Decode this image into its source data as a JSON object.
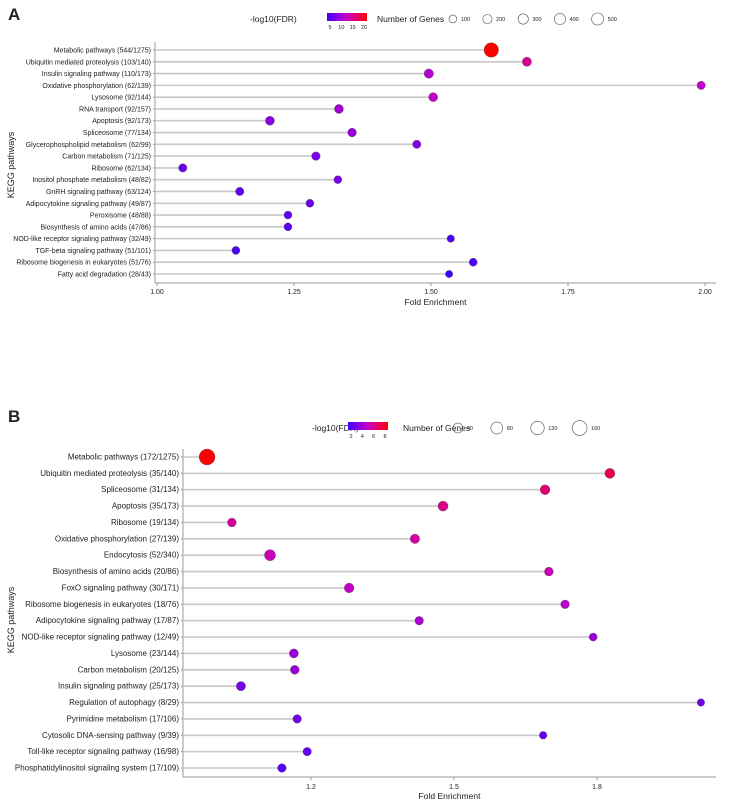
{
  "chart_data": [
    {
      "panel": "A",
      "type": "scatter",
      "subtype": "lollipop",
      "xlabel": "Fold Enrichment",
      "ylabel": "KEGG pathways",
      "xlim": [
        1.0,
        2.02
      ],
      "xticks": [
        1.0,
        1.25,
        1.5,
        1.75,
        2.0
      ],
      "xtick_labels": [
        "1.00",
        "1.25",
        "1.50",
        "1.75",
        "2.00"
      ],
      "color_legend": {
        "title": "-log10(FDR)",
        "ticks": [
          "5",
          "10",
          "15",
          "20"
        ],
        "range": [
          3,
          22
        ]
      },
      "size_legend": {
        "title": "Number of Genes",
        "values": [
          100,
          200,
          300,
          400,
          500
        ],
        "labels": [
          "100",
          "200",
          "300",
          "400",
          "500"
        ]
      },
      "categories": [
        "Metabolic pathways (544/1275)",
        "Ubiquitin mediated proteolysis (103/140)",
        "Insulin signaling pathway (110/173)",
        "Oxidative phosphorylation (62/139)",
        "Lysosome (92/144)",
        "RNA transport (92/157)",
        "Apoptosis (92/173)",
        "Spliceosome (77/134)",
        "Glycerophospholipid metabolism (62/99)",
        "Carbon metabolism (71/125)",
        "Ribosome (62/134)",
        "Inositol phosphate metabolism (48/82)",
        "GnRH signaling pathway (63/124)",
        "Adipocytokine signaling pathway (49/87)",
        "Peroxisome (48/88)",
        "Biosynthesis of amino acids (47/86)",
        "NOD-like receptor signaling pathway (32/49)",
        "TGF-beta signaling pathway (51/101)",
        "Ribosome biogenesis in eukaryotes (51/76)",
        "Fatty acid degradation (28/43)"
      ],
      "fold_enrichment": [
        1.61,
        1.675,
        1.496,
        1.993,
        1.504,
        1.332,
        1.206,
        1.356,
        1.474,
        1.29,
        1.047,
        1.33,
        1.151,
        1.279,
        1.239,
        1.239,
        1.536,
        1.144,
        1.577,
        1.533
      ],
      "gene_count": [
        544,
        103,
        110,
        62,
        92,
        92,
        92,
        77,
        62,
        71,
        62,
        48,
        63,
        49,
        48,
        47,
        32,
        51,
        51,
        28
      ],
      "neg_log10_fdr": [
        22,
        15,
        11,
        12,
        12,
        10,
        8,
        9,
        8,
        7,
        6,
        7,
        5,
        6,
        5,
        5,
        4,
        4,
        4,
        3
      ]
    },
    {
      "panel": "B",
      "type": "scatter",
      "subtype": "lollipop",
      "xlabel": "Fold Enrichment",
      "ylabel": "KEGG pathways",
      "xlim": [
        0.946,
        2.045
      ],
      "xticks": [
        1.2,
        1.5,
        1.8
      ],
      "xtick_labels": [
        "1.2",
        "1.5",
        "1.8"
      ],
      "color_legend": {
        "title": "-log10(FDR)",
        "ticks": [
          "2",
          "4",
          "6",
          "8"
        ],
        "range": [
          1.5,
          9
        ]
      },
      "size_legend": {
        "title": "Number of Genes",
        "values": [
          40,
          80,
          120,
          160
        ],
        "labels": [
          "40",
          "80",
          "120",
          "160"
        ]
      },
      "categories": [
        "Metabolic pathways (172/1275)",
        "Ubiquitin mediated proteolysis (35/140)",
        "Spliceosome (31/134)",
        "Apoptosis (35/173)",
        "Ribosome (19/134)",
        "Oxidative phosphorylation (27/139)",
        "Endocytosis (52/340)",
        "Biosynthesis of amino acids (20/86)",
        "FoxO signaling pathway (30/171)",
        "Ribosome biogenesis in eukaryotes (18/76)",
        "Adipocytokine signaling pathway (17/87)",
        "NOD-like receptor signaling pathway (12/49)",
        "Lysosome (23/144)",
        "Carbon metabolism (20/125)",
        "Insulin signaling pathway (25/173)",
        "Regulation of autophagy (8/29)",
        "Pyrimidine metabolism (17/106)",
        "Cytosolic DNA-sensing pathway (9/39)",
        "Toll-like receptor signaling pathway (16/98)",
        "Phosphatidylinositol signaling system (17/109)"
      ],
      "fold_enrichment": [
        0.982,
        1.827,
        1.691,
        1.477,
        1.034,
        1.418,
        1.114,
        1.699,
        1.28,
        1.733,
        1.427,
        1.792,
        1.164,
        1.166,
        1.053,
        2.018,
        1.171,
        1.687,
        1.192,
        1.139
      ],
      "gene_count": [
        172,
        35,
        31,
        35,
        19,
        27,
        52,
        20,
        30,
        18,
        17,
        12,
        23,
        20,
        25,
        8,
        17,
        9,
        16,
        17
      ],
      "neg_log10_fdr": [
        9,
        7.5,
        7,
        6.5,
        6,
        6,
        5.5,
        5.5,
        5,
        5,
        4.5,
        4,
        4,
        4,
        3,
        3,
        3,
        2.5,
        2.5,
        2
      ]
    }
  ],
  "colors": {
    "low": "#3f00ff",
    "mid": "#c800c8",
    "high": "#ff0000",
    "stem": "#c8c8c8"
  }
}
